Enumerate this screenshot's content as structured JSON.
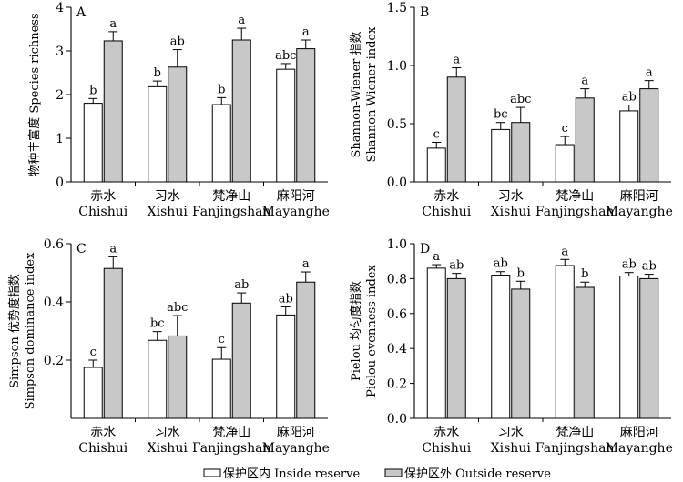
{
  "legend": {
    "inside": "保护区内 Inside reserve",
    "outside": "保护区外 Outside reserve"
  },
  "colors": {
    "inside": "#ffffff",
    "outside": "#c8c8c8",
    "stroke": "#000000"
  },
  "chart_data": [
    {
      "type": "bar",
      "panel": "A",
      "ylabel_cn": "物种丰富度 Species richness",
      "ylabel_en": "",
      "ylim": [
        0,
        4
      ],
      "yticks": [
        "0",
        "1",
        "2",
        "3",
        "4"
      ],
      "categories_cn": [
        "赤水",
        "习水",
        "梵净山",
        "麻阳河"
      ],
      "categories_en": [
        "Chishui",
        "Xishui",
        "Fanjingshan",
        "Mayanghe"
      ],
      "series": [
        {
          "name": "保护区内 Inside reserve",
          "values": [
            1.8,
            2.18,
            1.77,
            2.58
          ],
          "errors": [
            0.11,
            0.13,
            0.16,
            0.13
          ],
          "labels": [
            "b",
            "b",
            "b",
            "abc"
          ]
        },
        {
          "name": "保护区外 Outside reserve",
          "values": [
            3.23,
            2.63,
            3.25,
            3.05
          ],
          "errors": [
            0.21,
            0.4,
            0.27,
            0.2
          ],
          "labels": [
            "a",
            "ab",
            "a",
            "a"
          ]
        }
      ]
    },
    {
      "type": "bar",
      "panel": "B",
      "ylabel_cn": "Shannon-Wiener 指数",
      "ylabel_en": "Shannon-Wiener index",
      "ylim": [
        0,
        1.5
      ],
      "yticks": [
        "0.0",
        "0.5",
        "1.0",
        "1.5"
      ],
      "categories_cn": [
        "赤水",
        "习水",
        "梵净山",
        "麻阳河"
      ],
      "categories_en": [
        "Chishui",
        "Xishui",
        "Fanjingshan",
        "Mayanghe"
      ],
      "series": [
        {
          "name": "保护区内 Inside reserve",
          "values": [
            0.29,
            0.45,
            0.32,
            0.61
          ],
          "errors": [
            0.05,
            0.06,
            0.07,
            0.05
          ],
          "labels": [
            "c",
            "bc",
            "c",
            "ab"
          ]
        },
        {
          "name": "保护区外 Outside reserve",
          "values": [
            0.9,
            0.51,
            0.72,
            0.8
          ],
          "errors": [
            0.08,
            0.13,
            0.08,
            0.07
          ],
          "labels": [
            "a",
            "abc",
            "a",
            "a"
          ]
        }
      ]
    },
    {
      "type": "bar",
      "panel": "C",
      "ylabel_cn": "Simpson 优势度指数",
      "ylabel_en": "Simpson dominance index",
      "ylim": [
        0,
        0.6
      ],
      "yticks": [
        "0.2",
        "0.4",
        "0.6"
      ],
      "categories_cn": [
        "赤水",
        "习水",
        "梵净山",
        "麻阳河"
      ],
      "categories_en": [
        "Chishui",
        "Xishui",
        "Fanjingshan",
        "Mayanghe"
      ],
      "series": [
        {
          "name": "保护区内 Inside reserve",
          "values": [
            0.175,
            0.268,
            0.203,
            0.355
          ],
          "errors": [
            0.025,
            0.03,
            0.04,
            0.028
          ],
          "labels": [
            "c",
            "bc",
            "c",
            "ab"
          ]
        },
        {
          "name": "保护区外 Outside reserve",
          "values": [
            0.515,
            0.283,
            0.396,
            0.468
          ],
          "errors": [
            0.04,
            0.07,
            0.035,
            0.035
          ],
          "labels": [
            "a",
            "abc",
            "ab",
            "a"
          ]
        }
      ]
    },
    {
      "type": "bar",
      "panel": "D",
      "ylabel_cn": "Pielou 均匀度指数",
      "ylabel_en": "Pielou evenness index",
      "ylim": [
        0,
        1.0
      ],
      "yticks": [
        "0.0",
        "0.2",
        "0.4",
        "0.6",
        "0.8",
        "1.0"
      ],
      "categories_cn": [
        "赤水",
        "习水",
        "梵净山",
        "麻阳河"
      ],
      "categories_en": [
        "Chishui",
        "Xishui",
        "Fanjingshan",
        "Mayanghe"
      ],
      "series": [
        {
          "name": "保护区内 Inside reserve",
          "values": [
            0.86,
            0.82,
            0.875,
            0.815
          ],
          "errors": [
            0.02,
            0.02,
            0.035,
            0.02
          ],
          "labels": [
            "a",
            "ab",
            "a",
            "ab"
          ]
        },
        {
          "name": "保护区外 Outside reserve",
          "values": [
            0.8,
            0.74,
            0.75,
            0.8
          ],
          "errors": [
            0.03,
            0.045,
            0.03,
            0.025
          ],
          "labels": [
            "ab",
            "b",
            "b",
            "ab"
          ]
        }
      ]
    }
  ]
}
